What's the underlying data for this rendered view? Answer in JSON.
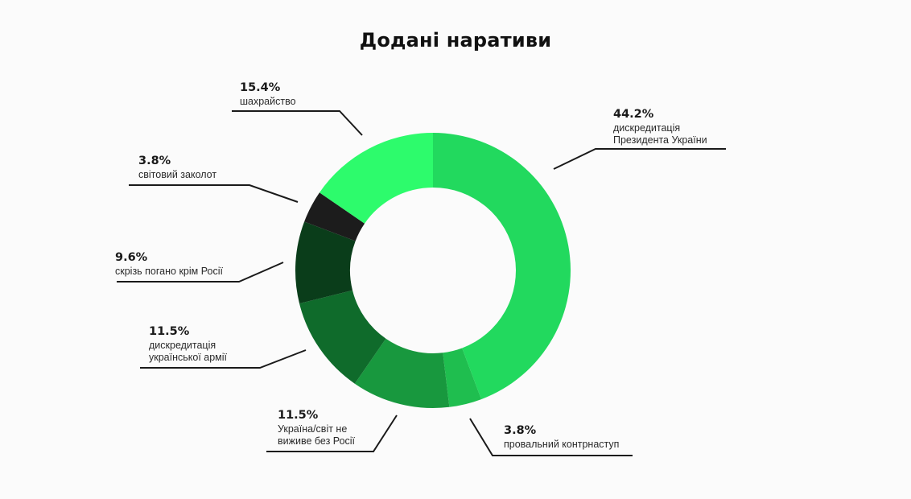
{
  "chart_data": {
    "type": "pie",
    "variant": "donut",
    "title": "Додані наративи",
    "slices": [
      {
        "label": "дискредитація Президента України",
        "lines": [
          "дискредитація",
          "Президента України"
        ],
        "value": 44.2,
        "display": "44.2%",
        "color": "#22d95e"
      },
      {
        "label": "провальний контрнаступ",
        "lines": [
          "провальний контрнаступ"
        ],
        "value": 3.8,
        "display": "3.8%",
        "color": "#1fbe4f"
      },
      {
        "label": "Україна/світ не виживе без Росії",
        "lines": [
          "Україна/світ не",
          "виживе без Росії"
        ],
        "value": 11.5,
        "display": "11.5%",
        "color": "#18983e"
      },
      {
        "label": "дискредитація української армії",
        "lines": [
          "дискредитація",
          "української армії"
        ],
        "value": 11.5,
        "display": "11.5%",
        "color": "#0f6b2b"
      },
      {
        "label": "скрізь погано крім Росії",
        "lines": [
          "скрізь погано крім Росії"
        ],
        "value": 9.6,
        "display": "9.6%",
        "color": "#0a3d1a"
      },
      {
        "label": "світовий заколот",
        "lines": [
          "світовий заколот"
        ],
        "value": 3.8,
        "display": "3.8%",
        "color": "#1c1c1c"
      },
      {
        "label": "шахрайство",
        "lines": [
          "шахрайство"
        ],
        "value": 15.4,
        "display": "15.4%",
        "color": "#2dfb6c"
      }
    ],
    "start": "12 o'clock",
    "direction": "clockwise",
    "legend": "none"
  }
}
